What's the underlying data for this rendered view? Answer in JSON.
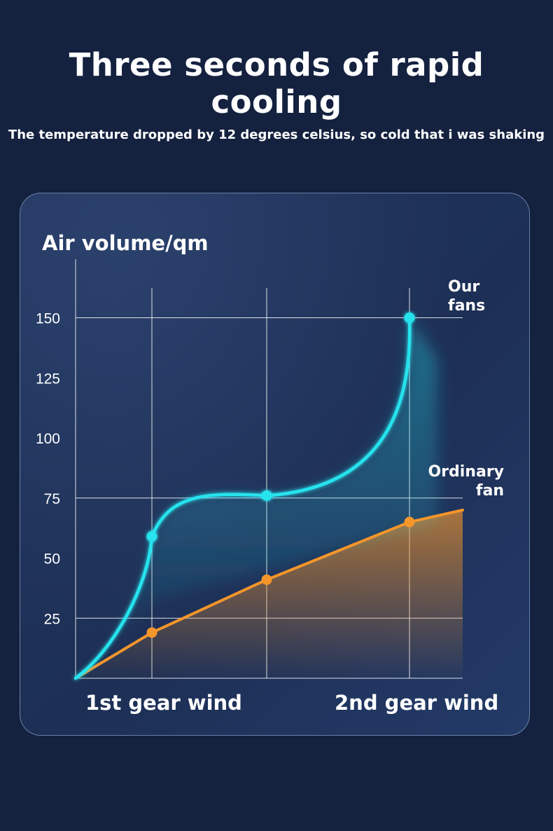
{
  "header": {
    "title": "Three seconds of rapid cooling",
    "subtitle": "The temperature dropped by 12 degrees celsius, so cold that i was shaking"
  },
  "chart_data": {
    "type": "line",
    "ylabel": "Air volume/qm",
    "xlabel": "",
    "yticks": [
      25,
      50,
      75,
      100,
      125,
      150
    ],
    "ylim": [
      0,
      170
    ],
    "categories": [
      "",
      "1st gear wind",
      "",
      "2nd gear wind"
    ],
    "x_axis_labels": [
      "1st gear wind",
      "2nd gear wind"
    ],
    "grid": true,
    "series": [
      {
        "name": "Our fans",
        "color": "#25e3ee",
        "x": [
          0,
          1,
          2,
          3
        ],
        "values": [
          0,
          59,
          76,
          150
        ]
      },
      {
        "name": "Ordinary fan",
        "color": "#f4962b",
        "x": [
          0,
          1,
          2,
          3,
          3.4
        ],
        "values": [
          0,
          19,
          41,
          65,
          70
        ]
      }
    ]
  }
}
